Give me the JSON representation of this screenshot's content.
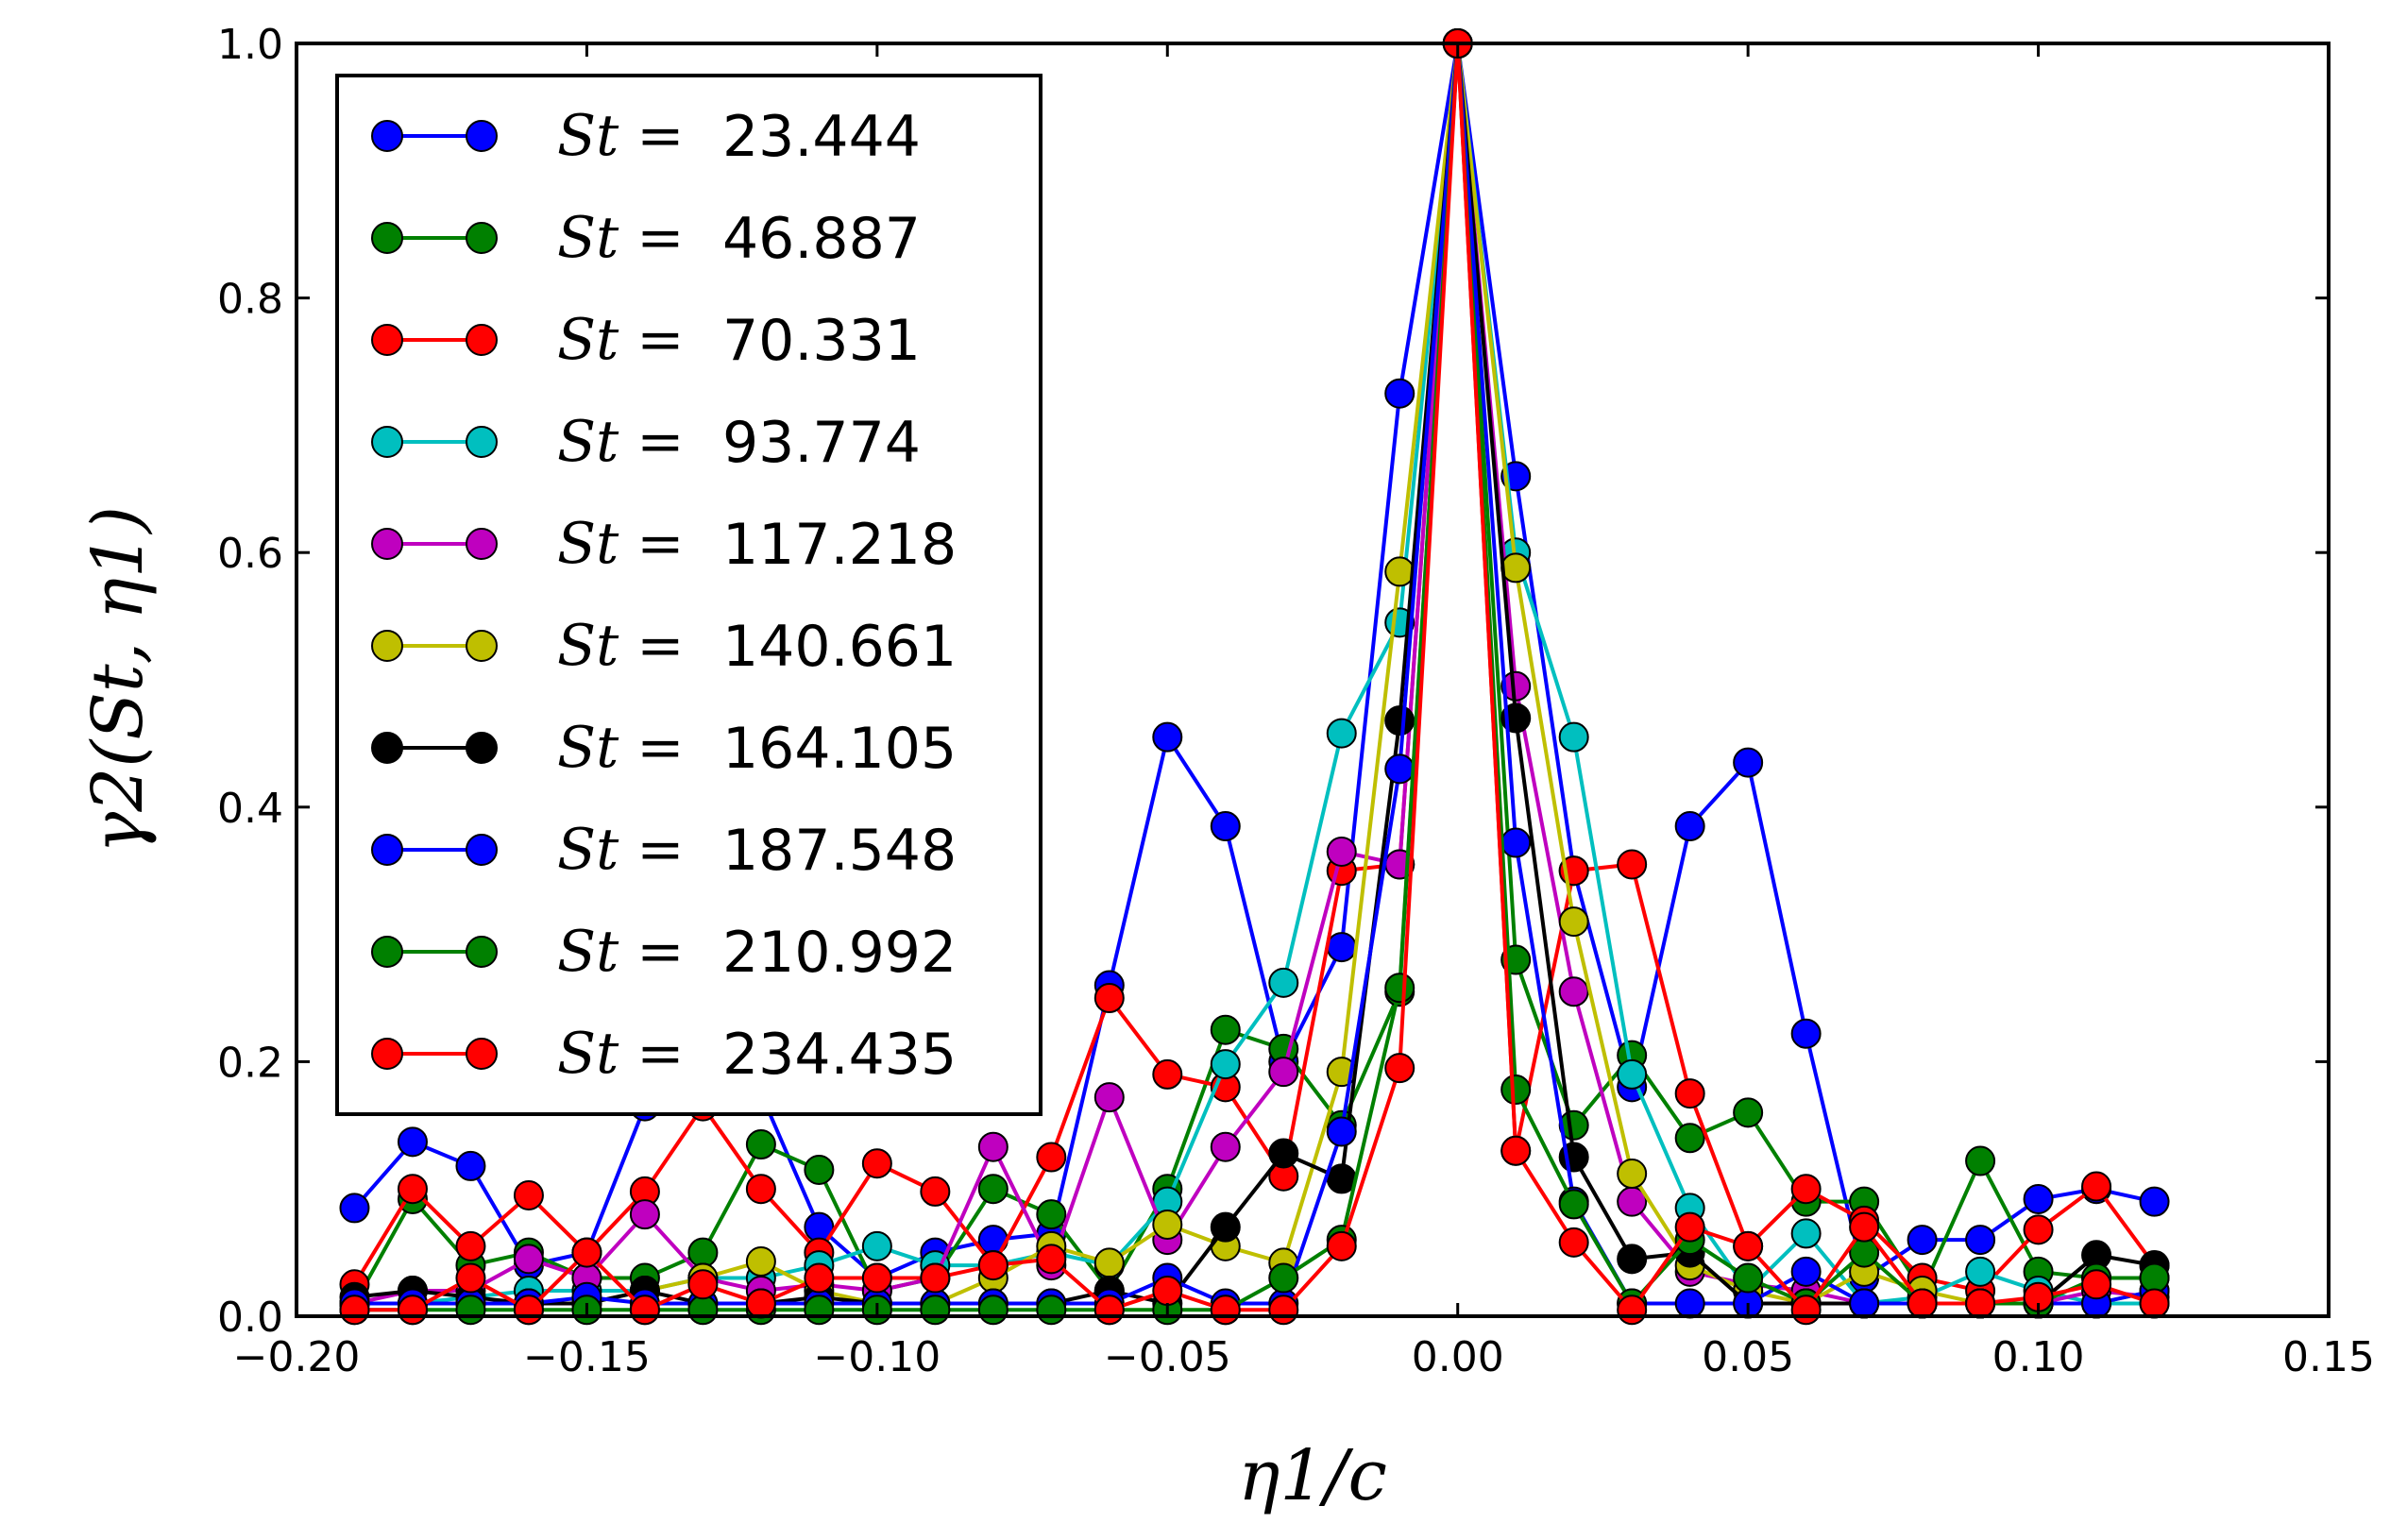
{
  "chart_data": {
    "type": "line",
    "title": "",
    "xlabel": "η1/c",
    "ylabel": "γ2(St, η1)",
    "xlim": [
      -0.2,
      0.15
    ],
    "ylim": [
      0.0,
      1.0
    ],
    "xticks": [
      "−0.20",
      "−0.15",
      "−0.10",
      "−0.05",
      "0.00",
      "0.05",
      "0.10",
      "0.15"
    ],
    "yticks": [
      "0.0",
      "0.2",
      "0.4",
      "0.6",
      "0.8",
      "1.0"
    ],
    "legend_position": "top-left",
    "legend_prefix": "St =",
    "x": [
      -0.19,
      -0.18,
      -0.17,
      -0.16,
      -0.15,
      -0.14,
      -0.13,
      -0.12,
      -0.11,
      -0.1,
      -0.09,
      -0.08,
      -0.07,
      -0.06,
      -0.05,
      -0.04,
      -0.03,
      -0.02,
      -0.01,
      0.0,
      0.01,
      0.02,
      0.03,
      0.04,
      0.05,
      0.06,
      0.07,
      0.08,
      0.09,
      0.1,
      0.11,
      0.12
    ],
    "series": [
      {
        "name": "23.444",
        "color": "#0000ff",
        "values": [
          0.085,
          0.137,
          0.118,
          0.04,
          0.05,
          0.165,
          0.18,
          0.175,
          0.07,
          0.03,
          0.05,
          0.06,
          0.065,
          0.26,
          0.455,
          0.385,
          0.2,
          0.29,
          0.725,
          1.0,
          0.66,
          0.35,
          0.18,
          0.385,
          0.435,
          0.222,
          0.03,
          0.06,
          0.06,
          0.092,
          0.1,
          0.09
        ]
      },
      {
        "name": "46.887",
        "color": "#008000",
        "values": [
          0.01,
          0.092,
          0.04,
          0.05,
          0.03,
          0.03,
          0.05,
          0.135,
          0.115,
          0.02,
          0.03,
          0.1,
          0.08,
          0.02,
          0.1,
          0.225,
          0.21,
          0.15,
          0.255,
          1.0,
          0.28,
          0.15,
          0.205,
          0.14,
          0.16,
          0.09,
          0.09,
          0.02,
          0.122,
          0.035,
          0.03,
          0.03
        ]
      },
      {
        "name": "70.331",
        "color": "#ff0000",
        "values": [
          0.025,
          0.1,
          0.055,
          0.095,
          0.05,
          0.098,
          0.165,
          0.1,
          0.05,
          0.12,
          0.098,
          0.04,
          0.125,
          0.25,
          0.19,
          0.18,
          0.11,
          0.35,
          0.355,
          1.0,
          0.13,
          0.35,
          0.355,
          0.175,
          0.055,
          0.1,
          0.075,
          0.03,
          0.02,
          0.068,
          0.102,
          0.04
        ]
      },
      {
        "name": "93.774",
        "color": "#00bfbf",
        "values": [
          0.01,
          0.01,
          0.015,
          0.02,
          0.02,
          0.02,
          0.03,
          0.03,
          0.04,
          0.055,
          0.04,
          0.04,
          0.05,
          0.04,
          0.09,
          0.198,
          0.262,
          0.458,
          0.545,
          1.0,
          0.6,
          0.455,
          0.19,
          0.085,
          0.02,
          0.065,
          0.01,
          0.015,
          0.035,
          0.02,
          0.01,
          0.01
        ]
      },
      {
        "name": "117.218",
        "color": "#bf00bf",
        "values": [
          0.01,
          0.02,
          0.02,
          0.045,
          0.03,
          0.08,
          0.03,
          0.02,
          0.025,
          0.02,
          0.03,
          0.133,
          0.04,
          0.172,
          0.06,
          0.133,
          0.192,
          0.365,
          0.355,
          1.0,
          0.495,
          0.255,
          0.09,
          0.035,
          0.025,
          0.02,
          0.01,
          0.01,
          0.01,
          0.01,
          0.02,
          0.015
        ]
      },
      {
        "name": "140.661",
        "color": "#bfbf00",
        "values": [
          0.01,
          0.01,
          0.01,
          0.01,
          0.01,
          0.02,
          0.03,
          0.043,
          0.02,
          0.01,
          0.01,
          0.03,
          0.055,
          0.042,
          0.072,
          0.055,
          0.042,
          0.192,
          0.585,
          1.0,
          0.588,
          0.31,
          0.112,
          0.04,
          0.02,
          0.01,
          0.035,
          0.02,
          0.01,
          0.01,
          0.01,
          0.02
        ]
      },
      {
        "name": "164.105",
        "color": "#000000",
        "values": [
          0.015,
          0.02,
          0.015,
          0.01,
          0.01,
          0.02,
          0.01,
          0.01,
          0.015,
          0.01,
          0.01,
          0.01,
          0.01,
          0.02,
          0.01,
          0.07,
          0.128,
          0.108,
          0.468,
          1.0,
          0.47,
          0.125,
          0.045,
          0.05,
          0.01,
          0.01,
          0.01,
          0.01,
          0.01,
          0.01,
          0.048,
          0.04
        ]
      },
      {
        "name": "187.548",
        "color": "#0000ff",
        "values": [
          0.01,
          0.01,
          0.01,
          0.01,
          0.015,
          0.01,
          0.01,
          0.01,
          0.01,
          0.01,
          0.01,
          0.01,
          0.01,
          0.01,
          0.03,
          0.01,
          0.01,
          0.145,
          0.43,
          1.0,
          0.372,
          0.09,
          0.01,
          0.01,
          0.01,
          0.035,
          0.01,
          0.01,
          0.01,
          0.01,
          0.01,
          0.02
        ]
      },
      {
        "name": "210.992",
        "color": "#008000",
        "values": [
          0.005,
          0.005,
          0.005,
          0.005,
          0.005,
          0.005,
          0.005,
          0.005,
          0.005,
          0.005,
          0.005,
          0.005,
          0.005,
          0.005,
          0.005,
          0.005,
          0.03,
          0.06,
          0.258,
          1.0,
          0.178,
          0.088,
          0.01,
          0.06,
          0.03,
          0.01,
          0.05,
          0.01,
          0.01,
          0.01,
          0.03,
          0.03
        ]
      },
      {
        "name": "234.435",
        "color": "#ff0000",
        "values": [
          0.005,
          0.005,
          0.03,
          0.005,
          0.05,
          0.005,
          0.025,
          0.01,
          0.03,
          0.03,
          0.03,
          0.04,
          0.045,
          0.005,
          0.02,
          0.005,
          0.005,
          0.055,
          0.195,
          1.0,
          0.13,
          0.058,
          0.005,
          0.07,
          0.055,
          0.005,
          0.07,
          0.01,
          0.01,
          0.015,
          0.025,
          0.01
        ]
      }
    ]
  }
}
